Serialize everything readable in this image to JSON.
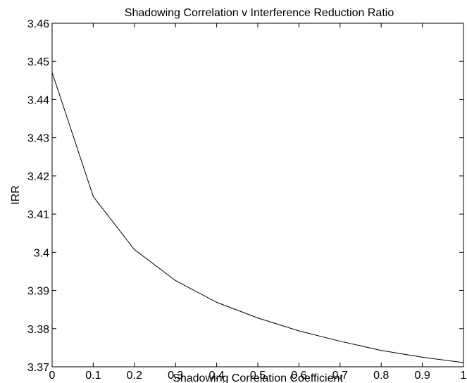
{
  "chart_data": {
    "type": "line",
    "title": "Shadowing Correlation v Interference Reduction Ratio",
    "xlabel": "Shadowing Correlation Coefficient",
    "ylabel": "IRR",
    "xlim": [
      0,
      1
    ],
    "ylim": [
      3.37,
      3.46
    ],
    "x_ticks": [
      "0",
      "0.1",
      "0.2",
      "0.3",
      "0.4",
      "0.5",
      "0.6",
      "0.7",
      "0.8",
      "0.9",
      "1"
    ],
    "y_ticks": [
      "3.37",
      "3.38",
      "3.39",
      "3.4",
      "3.41",
      "3.42",
      "3.43",
      "3.44",
      "3.45",
      "3.46"
    ],
    "grid": false,
    "legend": "none",
    "series": [
      {
        "x": [
          0,
          0.1,
          0.2,
          0.3,
          0.4,
          0.5,
          0.6,
          0.7,
          0.8,
          0.9,
          1.0
        ],
        "values": [
          3.4471,
          3.4146,
          3.4007,
          3.3926,
          3.3869,
          3.3828,
          3.3794,
          3.3767,
          3.3743,
          3.3725,
          3.3711
        ],
        "color": "#000000"
      }
    ]
  }
}
